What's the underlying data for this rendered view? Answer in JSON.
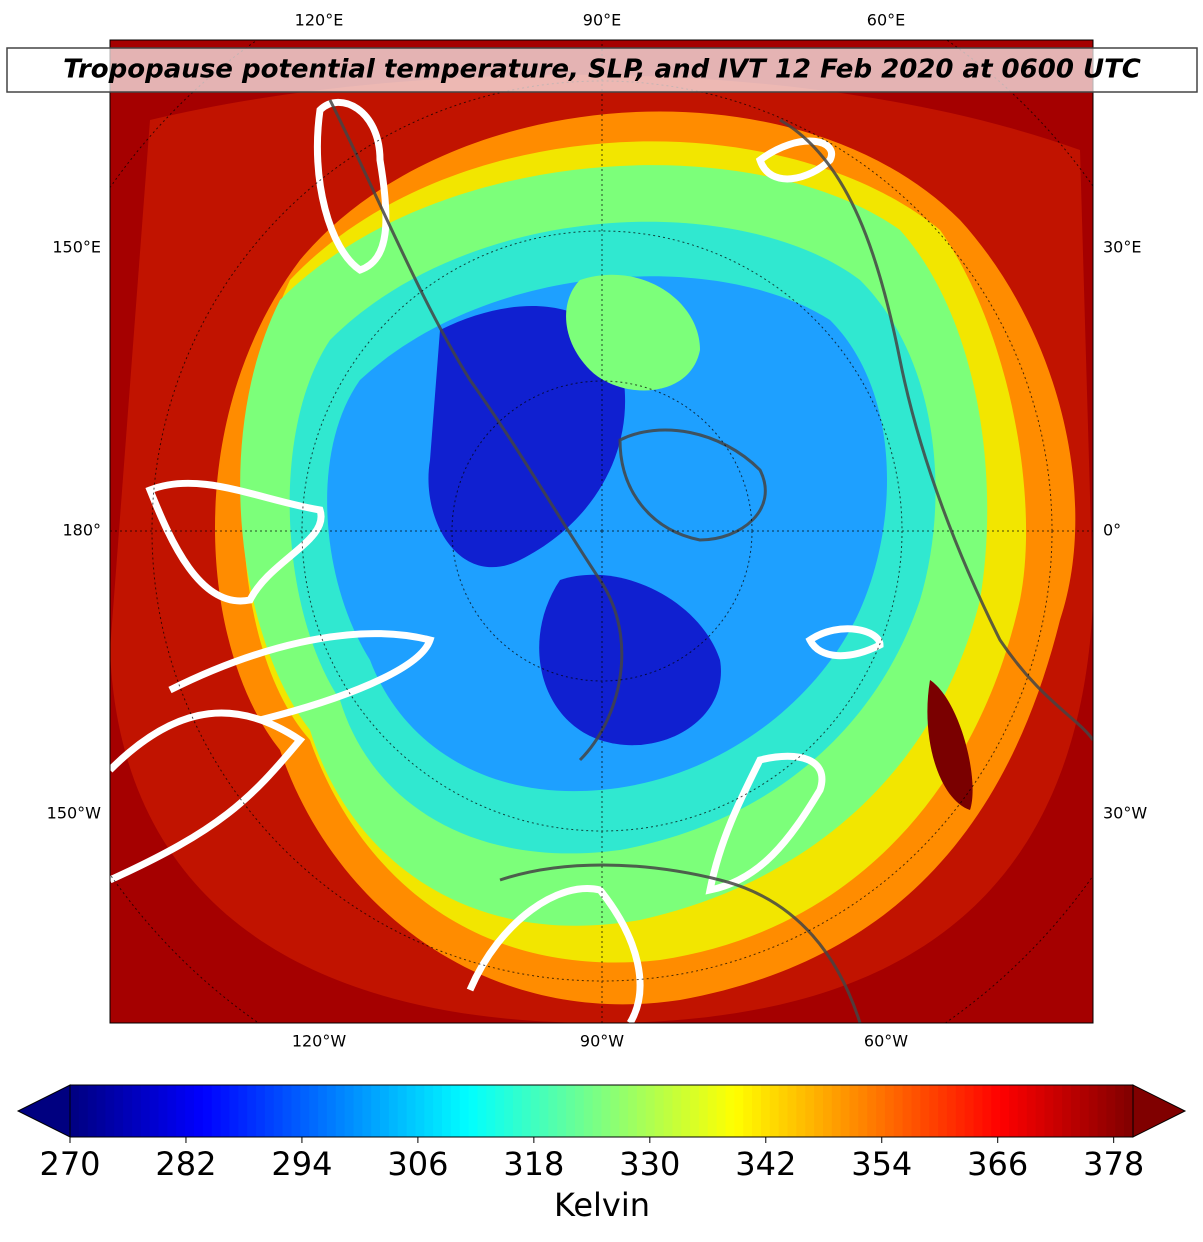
{
  "map": {
    "title": "Tropopause potential temperature, SLP, and IVT 12 Feb 2020 at 0600 UTC",
    "top_labels": [
      "120°E",
      "90°E",
      "60°E"
    ],
    "left_labels": [
      "150°E",
      "180°",
      "150°W"
    ],
    "right_labels": [
      "30°E",
      "0°",
      "30°W"
    ],
    "bottom_labels": [
      "120°W",
      "90°W",
      "60°W"
    ]
  },
  "colorbar": {
    "label": "Kelvin",
    "colormap": "jet",
    "clim": [
      270,
      380
    ],
    "ticks": [
      270,
      282,
      294,
      306,
      318,
      330,
      342,
      354,
      366,
      378
    ]
  }
}
